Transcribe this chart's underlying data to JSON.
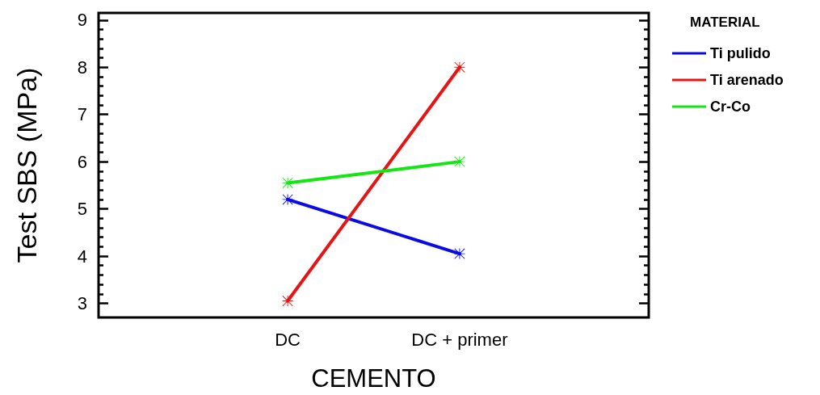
{
  "chart_data": {
    "type": "line",
    "xlabel": "CEMENTO",
    "ylabel": "Test SBS (MPa)",
    "legend_title": "MATERIAL",
    "categories": [
      "DC",
      "DC + primer"
    ],
    "series": [
      {
        "name": "Ti pulido",
        "color": "#0a0ae6",
        "values": [
          5.2,
          4.05
        ]
      },
      {
        "name": "Ti arenado",
        "color": "#e61414",
        "values": [
          3.05,
          8.0
        ]
      },
      {
        "name": "Cr-Co",
        "color": "#14e614",
        "values": [
          5.55,
          6.0
        ]
      }
    ],
    "ylim": [
      2.7,
      9.15
    ],
    "yticks": [
      3,
      4,
      5,
      6,
      7,
      8,
      9
    ],
    "legend": "top right",
    "marker": "star",
    "line_style": "solid"
  }
}
